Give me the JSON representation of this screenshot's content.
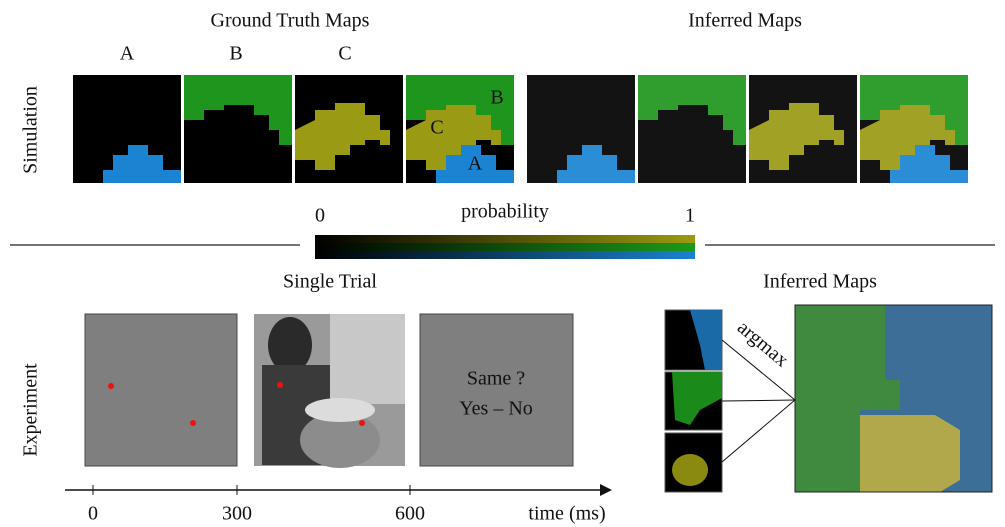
{
  "simulation": {
    "row_label": "Simulation",
    "ground_truth_title": "Ground Truth Maps",
    "inferred_title": "Inferred Maps",
    "map_labels": [
      "A",
      "B",
      "C"
    ],
    "overlay_labels": [
      "A",
      "B",
      "C"
    ]
  },
  "colorbar": {
    "label": "probability",
    "min_label": "0",
    "max_label": "1"
  },
  "experiment": {
    "row_label": "Experiment",
    "single_trial_title": "Single Trial",
    "prompt_lines": [
      "Same ?",
      "Yes – No"
    ],
    "inferred_title": "Inferred Maps",
    "argmax": "argmax",
    "timeline": {
      "tick_labels": [
        "0",
        "300",
        "600"
      ],
      "axis_label": "time (ms)"
    }
  }
}
